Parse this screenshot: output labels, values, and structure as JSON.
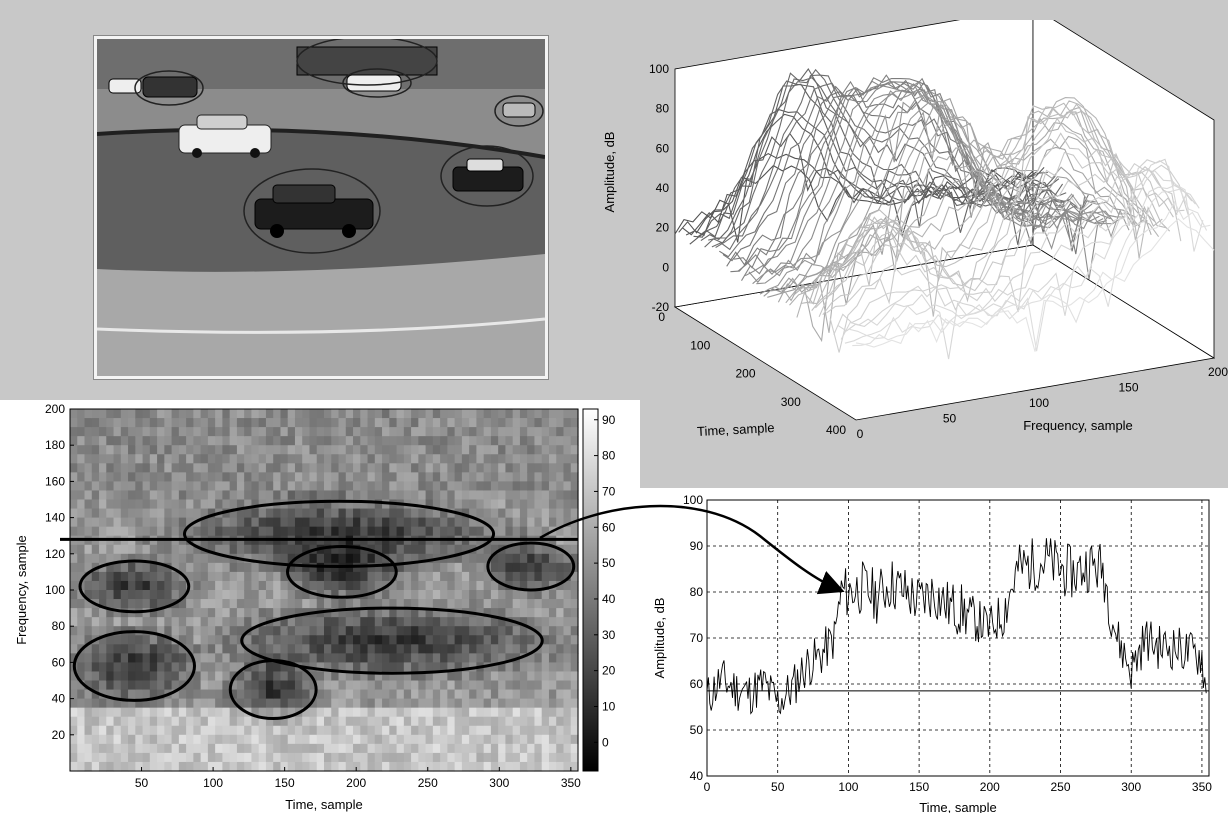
{
  "colors": {
    "figure_bg": "#c8c8c8",
    "axes_bg": "#ffffff",
    "line": "#000000"
  },
  "chart_data": [
    {
      "type": "surface",
      "zlabel": "Amplitude, dB",
      "xlabel": "Frequency, sample",
      "ylabel": "Time, sample",
      "x_ticks": [
        0,
        50,
        100,
        150,
        200
      ],
      "y_ticks": [
        0,
        100,
        200,
        300,
        400
      ],
      "z_ticks": [
        -20,
        0,
        20,
        40,
        60,
        80,
        100
      ],
      "xlim": [
        0,
        200
      ],
      "ylim": [
        0,
        400
      ],
      "zlim": [
        -20,
        100
      ],
      "colormap": "gray"
    },
    {
      "type": "heatmap",
      "xlabel": "Time, sample",
      "ylabel": "Frequency, sample",
      "x_ticks": [
        50,
        100,
        150,
        200,
        250,
        300,
        350
      ],
      "y_ticks": [
        20,
        40,
        60,
        80,
        100,
        120,
        140,
        160,
        180,
        200
      ],
      "xlim": [
        0,
        355
      ],
      "ylim": [
        0,
        200
      ],
      "colorbar_ticks": [
        0,
        10,
        20,
        30,
        40,
        50,
        60,
        70,
        80,
        90
      ],
      "colorbar_range": [
        -8,
        93
      ],
      "colormap": "gray",
      "horizontal_line_y": 128,
      "highlighted_regions": [
        {
          "x": 45,
          "y": 102,
          "rx": 38,
          "ry": 14
        },
        {
          "x": 45,
          "y": 58,
          "rx": 42,
          "ry": 19
        },
        {
          "x": 142,
          "y": 45,
          "rx": 30,
          "ry": 16
        },
        {
          "x": 188,
          "y": 131,
          "rx": 108,
          "ry": 18
        },
        {
          "x": 190,
          "y": 110,
          "rx": 38,
          "ry": 14
        },
        {
          "x": 225,
          "y": 72,
          "rx": 105,
          "ry": 18
        },
        {
          "x": 322,
          "y": 113,
          "rx": 30,
          "ry": 13
        }
      ]
    },
    {
      "type": "line",
      "xlabel": "Time, sample",
      "ylabel": "Amplitude, dB",
      "x_ticks": [
        0,
        50,
        100,
        150,
        200,
        250,
        300,
        350
      ],
      "y_ticks": [
        40,
        50,
        60,
        70,
        80,
        90,
        100
      ],
      "xlim": [
        0,
        355
      ],
      "ylim": [
        40,
        100
      ],
      "grid": true,
      "reference_line_y": 58.5,
      "series": [
        {
          "x": [
            0,
            10,
            20,
            30,
            40,
            50,
            60,
            70,
            80,
            90,
            95,
            100,
            110,
            120,
            130,
            140,
            150,
            160,
            170,
            180,
            190,
            200,
            210,
            220,
            230,
            240,
            250,
            260,
            270,
            280,
            290,
            300,
            310,
            320,
            330,
            340,
            350,
            353
          ],
          "y": [
            57,
            61,
            59,
            58,
            60,
            56,
            59,
            64,
            66,
            70,
            80,
            80,
            81,
            79,
            82,
            80,
            78,
            80,
            77,
            76,
            74,
            72,
            76,
            85,
            86,
            87,
            85,
            84,
            86,
            85,
            70,
            63,
            70,
            68,
            68,
            67,
            66,
            58
          ]
        }
      ]
    }
  ]
}
